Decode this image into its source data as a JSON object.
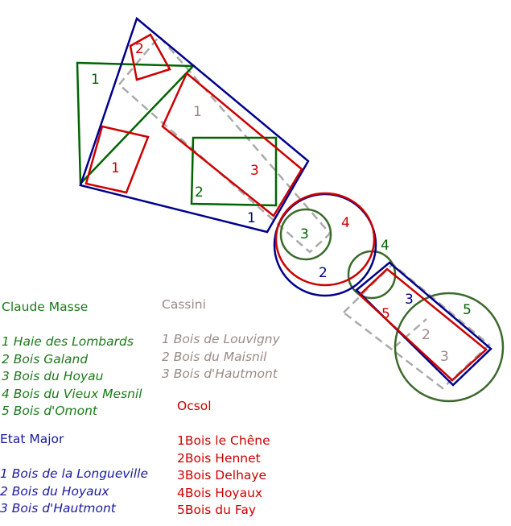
{
  "colors": {
    "claude_masse": "#006400",
    "cassini": "#aaaaaa",
    "etat_major": "#00008b",
    "ocsol": "#cc0000",
    "circle_green": "#3a6a2a"
  },
  "map_labels": {
    "green_1": "1",
    "green_2": "2",
    "green_3": "3",
    "green_4": "4",
    "green_5": "5",
    "gray_1": "1",
    "gray_2": "2",
    "gray_3": "3",
    "blue_1": "1",
    "blue_2": "2",
    "blue_3": "3",
    "red_1": "1",
    "red_2": "2",
    "red_3": "3",
    "red_4": "4",
    "red_5": "5"
  },
  "legend": {
    "claude_masse": {
      "title": "Claude Masse",
      "items": [
        "1 Haie des Lombards",
        "2 Bois Galand",
        "3 Bois du Hoyau",
        "4 Bois du Vieux Mesnil",
        "5 Bois d'Omont"
      ]
    },
    "cassini": {
      "title": "Cassini",
      "items": [
        "1 Bois de Louvigny",
        "2 Bois du Maisnil",
        "3 Bois d'Hautmont"
      ]
    },
    "etat_major": {
      "title": "Etat Major",
      "items": [
        "1 Bois de la Longueville",
        "2 Bois du Hoyaux",
        "3 Bois d'Hautmont"
      ]
    },
    "ocsol": {
      "title": "Ocsol",
      "items": [
        "1Bois le Chêne",
        "2Bois Hennet",
        "3Bois Delhaye",
        "4Bois Hoyaux",
        "5Bois du Fay"
      ]
    }
  }
}
